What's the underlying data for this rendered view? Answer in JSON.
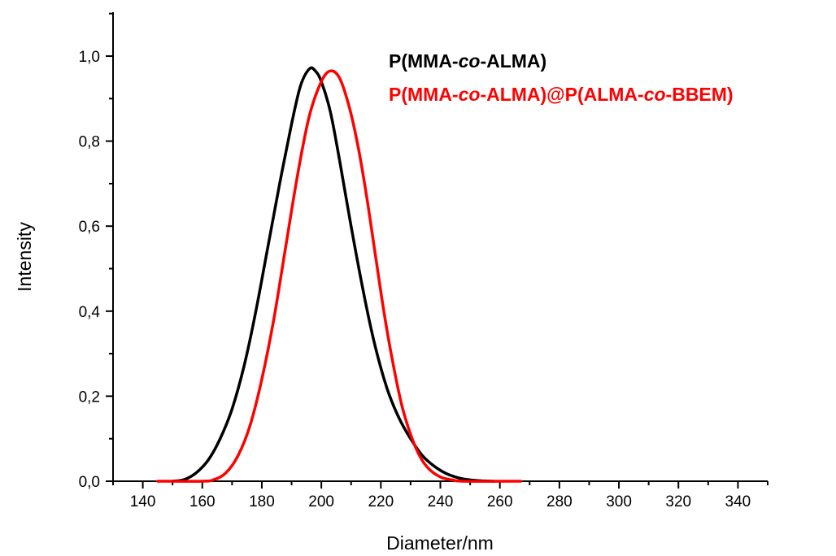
{
  "chart_data": {
    "type": "line",
    "xlabel": "Diameter/nm",
    "ylabel": "Intensity",
    "xlim": [
      130,
      350
    ],
    "ylim": [
      0,
      1.1
    ],
    "x_ticks": [
      {
        "value": 140,
        "label": "140"
      },
      {
        "value": 160,
        "label": "160"
      },
      {
        "value": 180,
        "label": "180"
      },
      {
        "value": 200,
        "label": "200"
      },
      {
        "value": 220,
        "label": "220"
      },
      {
        "value": 240,
        "label": "240"
      },
      {
        "value": 260,
        "label": "260"
      },
      {
        "value": 280,
        "label": "280"
      },
      {
        "value": 300,
        "label": "300"
      },
      {
        "value": 320,
        "label": "320"
      },
      {
        "value": 340,
        "label": "340"
      }
    ],
    "y_ticks": [
      {
        "value": 0.0,
        "label": "0,0"
      },
      {
        "value": 0.2,
        "label": "0,2"
      },
      {
        "value": 0.4,
        "label": "0,4"
      },
      {
        "value": 0.6,
        "label": "0,6"
      },
      {
        "value": 0.8,
        "label": "0,8"
      },
      {
        "value": 1.0,
        "label": "1,0"
      }
    ],
    "grid": false,
    "legend_position": "top-right",
    "series": [
      {
        "name": "P(MMA-co-ALMA)",
        "legend_parts": [
          {
            "text": "P(MMA-",
            "italic": false
          },
          {
            "text": "co",
            "italic": true
          },
          {
            "text": "-ALMA)",
            "italic": false
          }
        ],
        "color": "#000000",
        "points": [
          [
            150,
            0.0
          ],
          [
            154,
            0.004
          ],
          [
            158,
            0.02
          ],
          [
            162,
            0.05
          ],
          [
            166,
            0.1
          ],
          [
            170,
            0.17
          ],
          [
            174,
            0.27
          ],
          [
            178,
            0.4
          ],
          [
            182,
            0.55
          ],
          [
            186,
            0.7
          ],
          [
            190,
            0.84
          ],
          [
            193,
            0.93
          ],
          [
            196,
            0.97
          ],
          [
            198,
            0.965
          ],
          [
            200,
            0.94
          ],
          [
            203,
            0.87
          ],
          [
            206,
            0.76
          ],
          [
            210,
            0.6
          ],
          [
            214,
            0.45
          ],
          [
            218,
            0.32
          ],
          [
            222,
            0.22
          ],
          [
            226,
            0.15
          ],
          [
            230,
            0.1
          ],
          [
            234,
            0.06
          ],
          [
            238,
            0.035
          ],
          [
            242,
            0.018
          ],
          [
            246,
            0.008
          ],
          [
            250,
            0.003
          ],
          [
            254,
            0.001
          ],
          [
            258,
            0.0
          ]
        ]
      },
      {
        "name": "P(MMA-co-ALMA)@P(ALMA-co-BBEM)",
        "legend_parts": [
          {
            "text": "P(MMA-",
            "italic": false
          },
          {
            "text": "co",
            "italic": true
          },
          {
            "text": "-ALMA)@P(ALMA-",
            "italic": false
          },
          {
            "text": "co",
            "italic": true
          },
          {
            "text": "-BBEM)",
            "italic": false
          }
        ],
        "color": "#ff0000",
        "points": [
          [
            145,
            0.0
          ],
          [
            160,
            0.0
          ],
          [
            164,
            0.004
          ],
          [
            168,
            0.02
          ],
          [
            172,
            0.06
          ],
          [
            176,
            0.13
          ],
          [
            180,
            0.24
          ],
          [
            184,
            0.38
          ],
          [
            188,
            0.55
          ],
          [
            192,
            0.72
          ],
          [
            196,
            0.86
          ],
          [
            200,
            0.94
          ],
          [
            203,
            0.965
          ],
          [
            206,
            0.95
          ],
          [
            209,
            0.89
          ],
          [
            212,
            0.8
          ],
          [
            215,
            0.68
          ],
          [
            218,
            0.54
          ],
          [
            221,
            0.4
          ],
          [
            224,
            0.28
          ],
          [
            227,
            0.18
          ],
          [
            230,
            0.11
          ],
          [
            233,
            0.06
          ],
          [
            236,
            0.03
          ],
          [
            240,
            0.01
          ],
          [
            244,
            0.003
          ],
          [
            248,
            0.0
          ],
          [
            267,
            0.0
          ]
        ]
      }
    ]
  }
}
